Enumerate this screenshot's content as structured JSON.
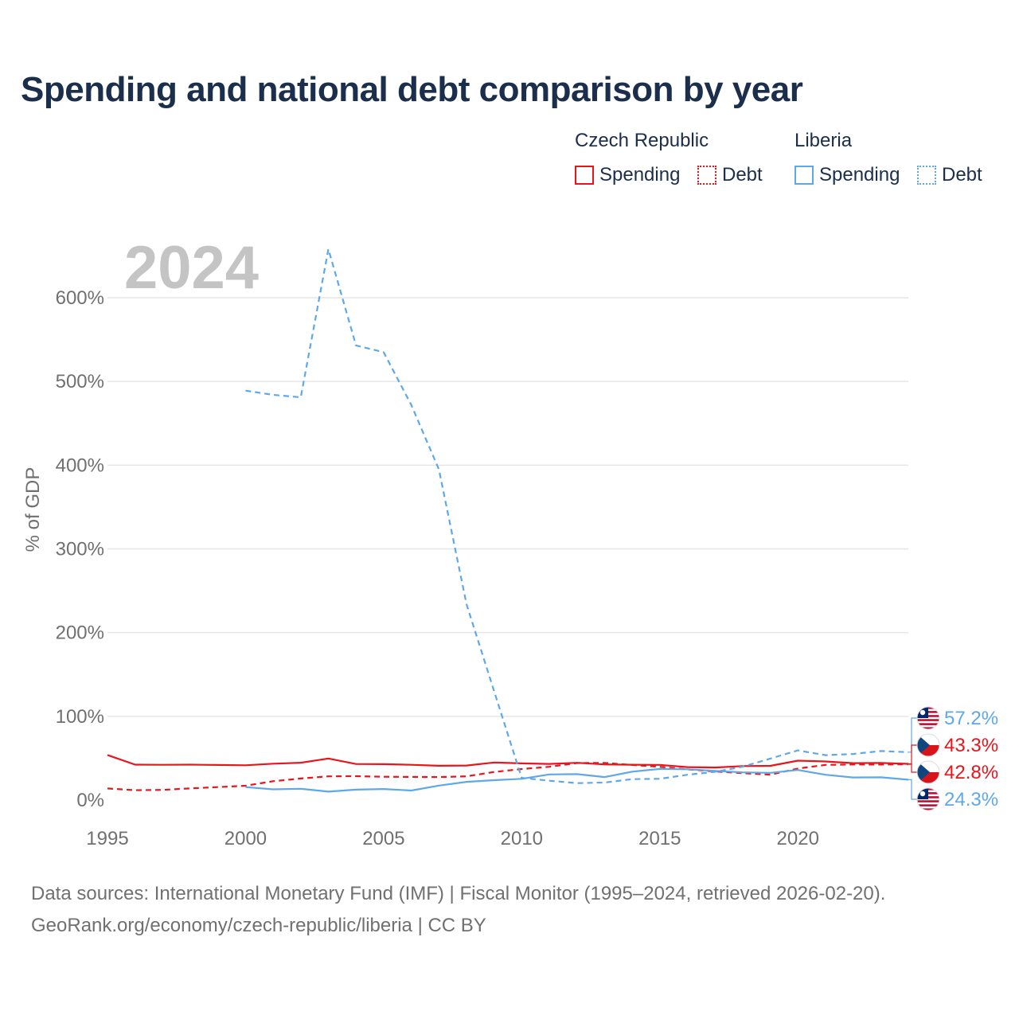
{
  "title": "Spending and national debt comparison by year",
  "legend": {
    "groups": [
      {
        "name": "Czech Republic",
        "items": [
          {
            "label": "Spending",
            "style": "solid"
          },
          {
            "label": "Debt",
            "style": "dotted"
          }
        ]
      },
      {
        "name": "Liberia",
        "items": [
          {
            "label": "Spending",
            "style": "solid"
          },
          {
            "label": "Debt",
            "style": "dotted"
          }
        ]
      }
    ]
  },
  "footer": {
    "line1": "Data sources: International Monetary Fund (IMF) | Fiscal Monitor (1995–2024, retrieved 2026-02-20).",
    "line2": "GeoRank.org/economy/czech-republic/liberia | CC BY"
  },
  "colors": {
    "czech": "#e8161c",
    "liberia": "#5fa8e8",
    "title": "#1b2e4b",
    "axis_text": "#707070",
    "grid": "#e6e6e6",
    "year_watermark": "#c4c4c4"
  },
  "chart_data": {
    "type": "line",
    "title": "Spending and national debt comparison by year",
    "year_label": "2024",
    "ylabel": "% of GDP",
    "xlabel": "",
    "xlim": [
      1995,
      2024
    ],
    "ylim": [
      0,
      600
    ],
    "x_ticks": [
      1995,
      2000,
      2005,
      2010,
      2015,
      2020
    ],
    "y_ticks": [
      0,
      100,
      200,
      300,
      400,
      500,
      600
    ],
    "y_tick_labels": [
      "0%",
      "100%",
      "200%",
      "300%",
      "400%",
      "500%",
      "600%"
    ],
    "series": [
      {
        "name": "Czech Republic Spending",
        "country": "Czech Republic",
        "measure": "Spending",
        "color": "#e8161c",
        "dash": "solid",
        "x": [
          1995,
          1996,
          1997,
          1998,
          1999,
          2000,
          2001,
          2002,
          2003,
          2004,
          2005,
          2006,
          2007,
          2008,
          2009,
          2010,
          2011,
          2012,
          2013,
          2014,
          2015,
          2016,
          2017,
          2018,
          2019,
          2020,
          2021,
          2022,
          2023,
          2024
        ],
        "values": [
          53.8,
          42.3,
          42.1,
          42.3,
          41.9,
          41.6,
          43.5,
          44.6,
          49.6,
          43.1,
          42.9,
          42.1,
          41.0,
          41.3,
          44.9,
          43.8,
          43.2,
          44.5,
          42.6,
          42.2,
          42.0,
          39.4,
          38.9,
          40.6,
          40.9,
          47.1,
          46.1,
          44.1,
          44.3,
          43.3
        ]
      },
      {
        "name": "Czech Republic Debt",
        "country": "Czech Republic",
        "measure": "Debt",
        "color": "#e8161c",
        "dash": "dotted",
        "x": [
          1995,
          1996,
          1997,
          1998,
          1999,
          2000,
          2001,
          2002,
          2003,
          2004,
          2005,
          2006,
          2007,
          2008,
          2009,
          2010,
          2011,
          2012,
          2013,
          2014,
          2015,
          2016,
          2017,
          2018,
          2019,
          2020,
          2021,
          2022,
          2023,
          2024
        ],
        "values": [
          13.9,
          11.8,
          12.2,
          14.0,
          15.5,
          17.1,
          22.5,
          25.8,
          28.3,
          28.5,
          27.9,
          27.7,
          27.5,
          28.3,
          33.6,
          37.1,
          39.7,
          44.2,
          44.4,
          41.9,
          39.7,
          36.6,
          34.2,
          32.1,
          30.3,
          37.7,
          42.0,
          42.5,
          42.4,
          42.8
        ]
      },
      {
        "name": "Liberia Spending",
        "country": "Liberia",
        "measure": "Spending",
        "color": "#5fa8e8",
        "dash": "solid",
        "x": [
          2000,
          2001,
          2002,
          2003,
          2004,
          2005,
          2006,
          2007,
          2008,
          2009,
          2010,
          2011,
          2012,
          2013,
          2014,
          2015,
          2016,
          2017,
          2018,
          2019,
          2020,
          2021,
          2022,
          2023,
          2024
        ],
        "values": [
          15.5,
          12.8,
          13.5,
          10.1,
          12.5,
          13.2,
          11.4,
          17.3,
          21.8,
          23.8,
          25.4,
          30.6,
          31.0,
          27.5,
          33.9,
          37.2,
          36.8,
          34.9,
          33.1,
          32.5,
          35.9,
          30.2,
          27.0,
          27.2,
          24.3
        ]
      },
      {
        "name": "Liberia Debt",
        "country": "Liberia",
        "measure": "Debt",
        "color": "#5fa8e8",
        "dash": "dotted",
        "x": [
          2000,
          2001,
          2002,
          2003,
          2004,
          2005,
          2006,
          2007,
          2008,
          2009,
          2010,
          2011,
          2012,
          2013,
          2014,
          2015,
          2016,
          2017,
          2018,
          2019,
          2020,
          2021,
          2022,
          2023,
          2024
        ],
        "values": [
          489,
          484,
          481,
          658,
          543,
          535,
          472,
          395,
          234,
          130,
          26.5,
          23.1,
          20.3,
          20.9,
          25.0,
          25.4,
          30.2,
          33.8,
          39.8,
          49.5,
          59.3,
          53.6,
          55.1,
          58.6,
          57.2
        ]
      }
    ],
    "end_labels": [
      {
        "text": "57.2%",
        "country": "Liberia",
        "color": "#5fa8e8"
      },
      {
        "text": "43.3%",
        "country": "Czech Republic",
        "color": "#e8161c"
      },
      {
        "text": "42.8%",
        "country": "Czech Republic",
        "color": "#e8161c"
      },
      {
        "text": "24.3%",
        "country": "Liberia",
        "color": "#5fa8e8"
      }
    ]
  }
}
